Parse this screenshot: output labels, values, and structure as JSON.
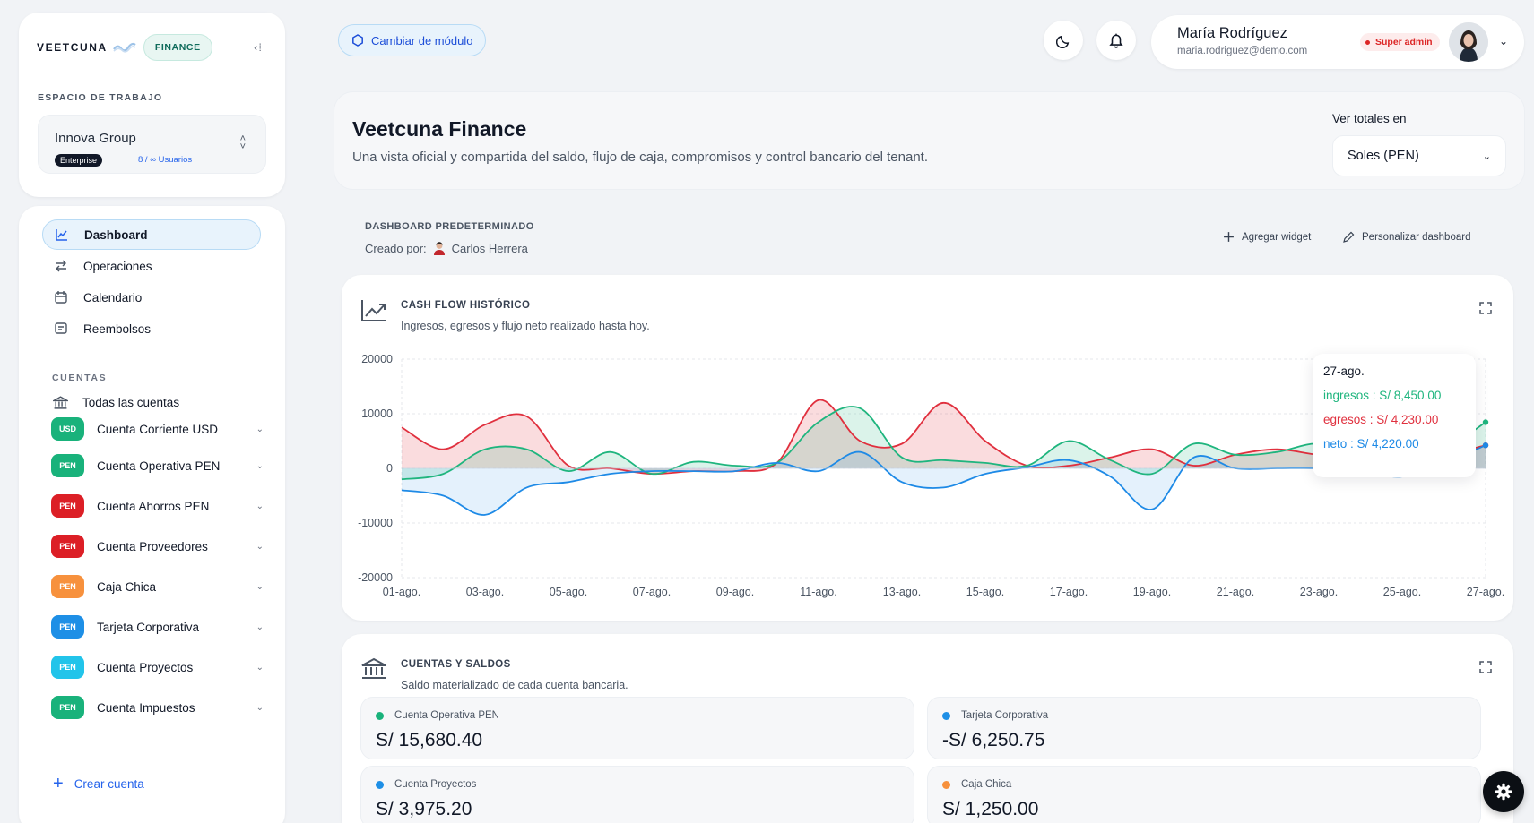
{
  "brand": {
    "name": "VEETCUNA",
    "module_pill": "FINANCE"
  },
  "workspace": {
    "section_label": "ESPACIO DE TRABAJO",
    "name": "Innova Group",
    "plan": "Enterprise",
    "users": "8 / ∞ Usuarios"
  },
  "nav": {
    "items": [
      {
        "label": "Dashboard",
        "icon": "chart-line-icon",
        "active": true
      },
      {
        "label": "Operaciones",
        "icon": "arrows-exchange-icon"
      },
      {
        "label": "Calendario",
        "icon": "calendar-icon"
      },
      {
        "label": "Reembolsos",
        "icon": "receipt-icon"
      }
    ],
    "accounts_label": "CUENTAS",
    "all_accounts": "Todas las cuentas",
    "accounts": [
      {
        "currency": "USD",
        "name": "Cuenta Corriente USD",
        "color": "#19b27b"
      },
      {
        "currency": "PEN",
        "name": "Cuenta Operativa PEN",
        "color": "#19b27b"
      },
      {
        "currency": "PEN",
        "name": "Cuenta Ahorros PEN",
        "color": "#dc1f26"
      },
      {
        "currency": "PEN",
        "name": "Cuenta Proveedores",
        "color": "#dc1f26"
      },
      {
        "currency": "PEN",
        "name": "Caja Chica",
        "color": "#f7913d"
      },
      {
        "currency": "PEN",
        "name": "Tarjeta Corporativa",
        "color": "#1e8fe6"
      },
      {
        "currency": "PEN",
        "name": "Cuenta Proyectos",
        "color": "#22c4ea"
      },
      {
        "currency": "PEN",
        "name": "Cuenta Impuestos",
        "color": "#19b27b"
      }
    ],
    "create_account": "Crear cuenta"
  },
  "topbar": {
    "module_button": "Cambiar de módulo",
    "user": {
      "name": "María Rodríguez",
      "email": "maria.rodriguez@demo.com",
      "role": "Super admin"
    }
  },
  "header": {
    "title": "Veetcuna Finance",
    "subtitle": "Una vista oficial y compartida del saldo, flujo de caja, compromisos y control bancario del tenant.",
    "totals_label": "Ver totales en",
    "totals_value": "Soles (PEN)"
  },
  "dashboard": {
    "label": "DASHBOARD PREDETERMINADO",
    "created_by_label": "Creado por:",
    "created_by": "Carlos Herrera",
    "add_widget": "Agregar widget",
    "customize": "Personalizar dashboard"
  },
  "cashflow": {
    "title": "CASH FLOW HISTÓRICO",
    "subtitle": "Ingresos, egresos y flujo neto realizado hasta hoy.",
    "tooltip": {
      "date": "27-ago.",
      "ingresos": "ingresos : S/ 8,450.00",
      "egresos": "egresos : S/ 4,230.00",
      "neto": "neto : S/ 4,220.00"
    }
  },
  "chart_data": {
    "type": "area",
    "x": [
      "01-ago.",
      "02-ago.",
      "03-ago.",
      "04-ago.",
      "05-ago.",
      "06-ago.",
      "07-ago.",
      "08-ago.",
      "09-ago.",
      "10-ago.",
      "11-ago.",
      "12-ago.",
      "13-ago.",
      "14-ago.",
      "15-ago.",
      "16-ago.",
      "17-ago.",
      "18-ago.",
      "19-ago.",
      "20-ago.",
      "21-ago.",
      "22-ago.",
      "23-ago.",
      "24-ago.",
      "25-ago.",
      "26-ago.",
      "27-ago."
    ],
    "x_ticks": [
      "01-ago.",
      "03-ago.",
      "05-ago.",
      "07-ago.",
      "09-ago.",
      "11-ago.",
      "13-ago.",
      "15-ago.",
      "17-ago.",
      "19-ago.",
      "21-ago.",
      "23-ago.",
      "25-ago.",
      "27-ago."
    ],
    "series": [
      {
        "name": "ingresos",
        "color": "#1fb57e",
        "values": [
          -2000,
          -1000,
          3500,
          3500,
          -500,
          3000,
          -1000,
          1200,
          500,
          1000,
          8500,
          11000,
          2000,
          1500,
          1000,
          500,
          5000,
          1500,
          -1000,
          4500,
          2500,
          3000,
          4500,
          1800,
          2000,
          3500,
          8450
        ]
      },
      {
        "name": "egresos",
        "color": "#e0303e",
        "values": [
          7500,
          3500,
          8000,
          9500,
          500,
          0,
          -1000,
          -500,
          -500,
          1000,
          12500,
          5000,
          4500,
          12000,
          5000,
          500,
          500,
          2000,
          3500,
          500,
          2500,
          3500,
          2500,
          2500,
          2000,
          2500,
          4230
        ]
      },
      {
        "name": "neto",
        "color": "#1e8ae6",
        "values": [
          -4000,
          -5000,
          -8500,
          -3500,
          -2500,
          -1000,
          -500,
          -500,
          -500,
          1000,
          -500,
          3000,
          -2500,
          -3500,
          -1000,
          200,
          1500,
          -1500,
          -7500,
          2000,
          0,
          0,
          0,
          -500,
          -1500,
          1000,
          4220
        ]
      }
    ],
    "ylim": [
      -20000,
      20000
    ],
    "y_ticks": [
      20000,
      10000,
      0,
      -10000,
      -20000
    ],
    "grid": true
  },
  "balances": {
    "title": "CUENTAS Y SALDOS",
    "subtitle": "Saldo materializado de cada cuenta bancaria.",
    "items": [
      {
        "name": "Cuenta Operativa PEN",
        "value": "S/ 15,680.40",
        "color": "#19b27b"
      },
      {
        "name": "Tarjeta Corporativa",
        "value": "-S/ 6,250.75",
        "color": "#1e8fe6"
      },
      {
        "name": "Cuenta Proyectos",
        "value": "S/ 3,975.20",
        "color": "#1e8fe6"
      },
      {
        "name": "Caja Chica",
        "value": "S/ 1,250.00",
        "color": "#f7913d"
      }
    ]
  }
}
